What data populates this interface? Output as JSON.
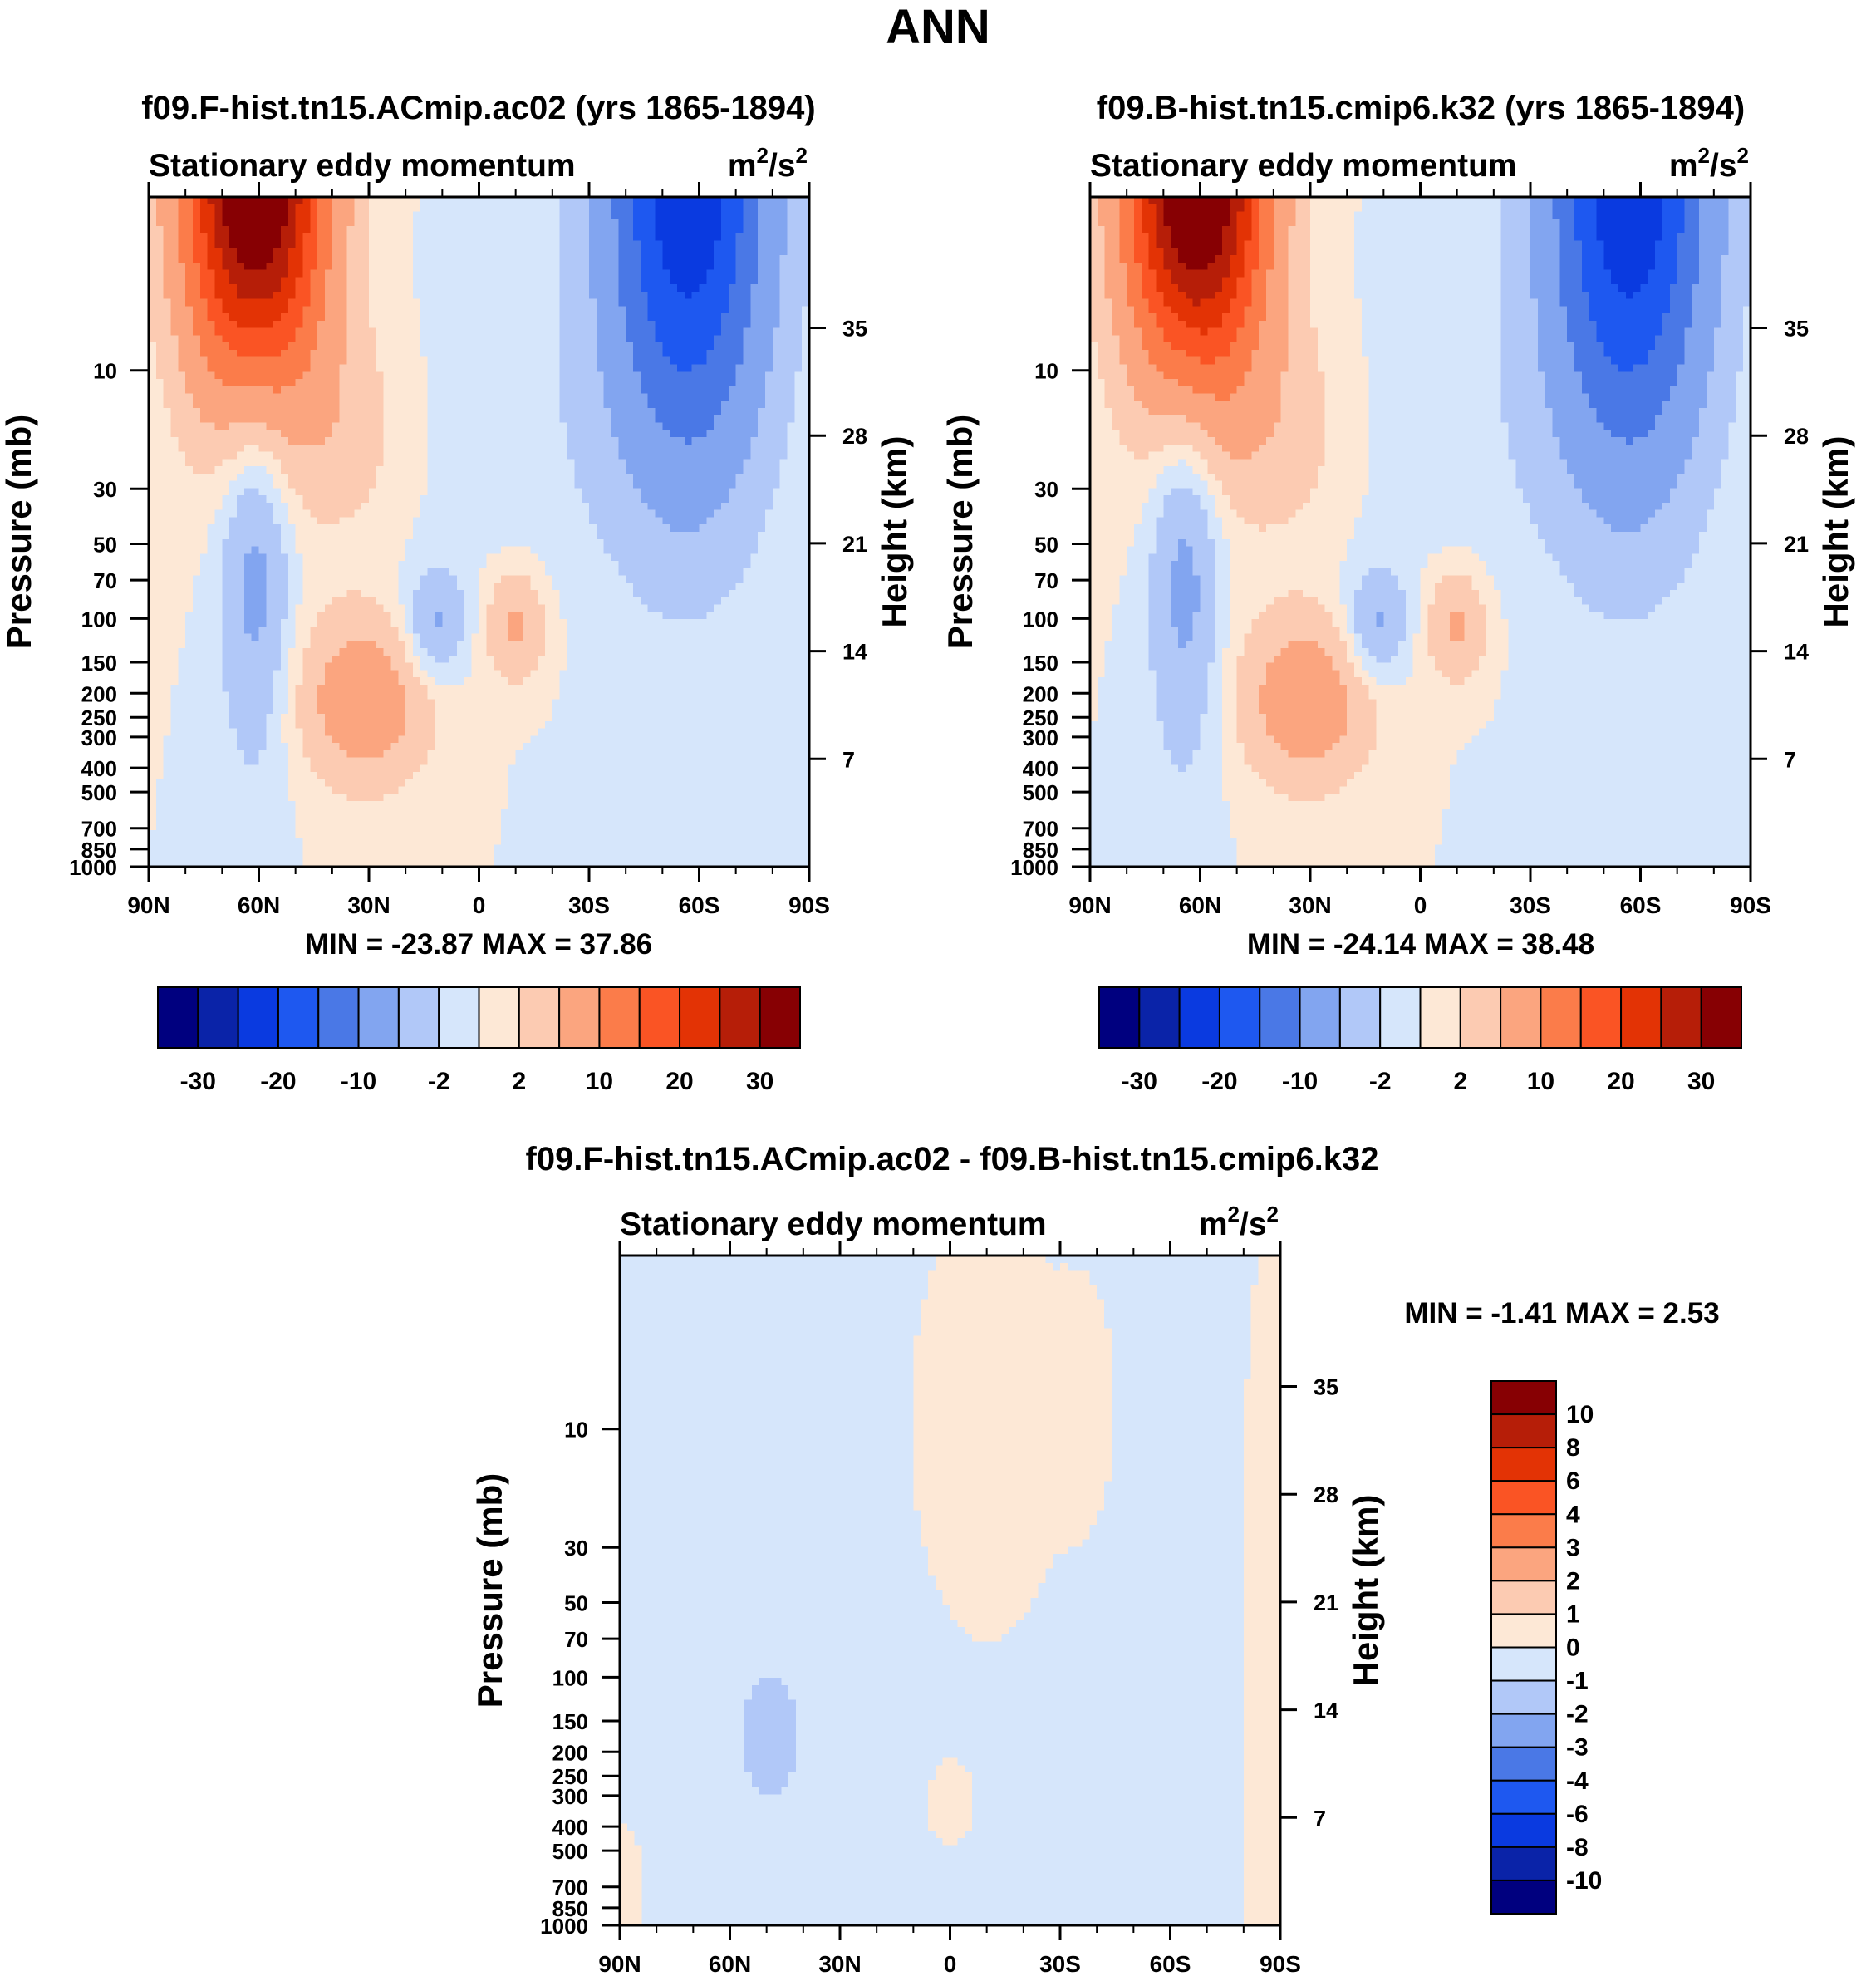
{
  "page_title": "ANN",
  "chart_data": [
    {
      "type": "contour",
      "title": "f09.F-hist.tn15.ACmip.ac02 (yrs 1865-1894)",
      "subtitle": "Stationary eddy momentum",
      "units_base": "m",
      "units_sup1": "2",
      "units_mid": "/s",
      "units_sup2": "2",
      "ylabel": "Pressure (mb)",
      "ylabel_right": "Height (km)",
      "x_ticks": [
        "90N",
        "60N",
        "30N",
        "0",
        "30S",
        "60S",
        "90S"
      ],
      "x_range": [
        90,
        -90
      ],
      "y_ticks": [
        10,
        30,
        50,
        70,
        100,
        150,
        200,
        250,
        300,
        400,
        500,
        700,
        850,
        1000
      ],
      "y_range_mb": [
        2,
        1000
      ],
      "height_ticks_km": [
        35,
        28,
        21,
        14,
        7
      ],
      "min_max": "MIN = -23.87  MAX =  37.86",
      "levels": [
        -30,
        -25,
        -20,
        -15,
        -10,
        -5,
        -2,
        0,
        2,
        5,
        10,
        15,
        20,
        25,
        30
      ],
      "colorbar_labels": [
        "-30",
        "-20",
        "-10",
        "-2",
        "2",
        "10",
        "20",
        "30"
      ],
      "features": [
        {
          "lat": 60,
          "p": 3,
          "value": 37.86,
          "kind": "max"
        },
        {
          "lat": -57,
          "p": 3,
          "value": -23.87,
          "kind": "min"
        },
        {
          "lat": 62,
          "p": 90,
          "value": -6,
          "kind": "min"
        },
        {
          "lat": 30,
          "p": 260,
          "value": 8,
          "kind": "max"
        },
        {
          "lat": -10,
          "p": 150,
          "value": 6,
          "kind": "max"
        },
        {
          "lat": 12,
          "p": 150,
          "value": -5,
          "kind": "min"
        }
      ]
    },
    {
      "type": "contour",
      "title": "f09.B-hist.tn15.cmip6.k32 (yrs 1865-1894)",
      "subtitle": "Stationary eddy momentum",
      "units_base": "m",
      "units_sup1": "2",
      "units_mid": "/s",
      "units_sup2": "2",
      "ylabel": "Pressure (mb)",
      "ylabel_right": "Height (km)",
      "x_ticks": [
        "90N",
        "60N",
        "30N",
        "0",
        "30S",
        "60S",
        "90S"
      ],
      "x_range": [
        90,
        -90
      ],
      "y_ticks": [
        10,
        30,
        50,
        70,
        100,
        150,
        200,
        250,
        300,
        400,
        500,
        700,
        850,
        1000
      ],
      "y_range_mb": [
        2,
        1000
      ],
      "height_ticks_km": [
        35,
        28,
        21,
        14,
        7
      ],
      "min_max": "MIN = -24.14  MAX =  38.48",
      "levels": [
        -30,
        -25,
        -20,
        -15,
        -10,
        -5,
        -2,
        0,
        2,
        5,
        10,
        15,
        20,
        25,
        30
      ],
      "colorbar_labels": [
        "-30",
        "-20",
        "-10",
        "-2",
        "2",
        "10",
        "20",
        "30"
      ],
      "features": [
        {
          "lat": 60,
          "p": 3,
          "value": 38.48,
          "kind": "max"
        },
        {
          "lat": -57,
          "p": 3,
          "value": -24.14,
          "kind": "min"
        },
        {
          "lat": 64,
          "p": 80,
          "value": -6,
          "kind": "min"
        },
        {
          "lat": 30,
          "p": 250,
          "value": 9,
          "kind": "max"
        },
        {
          "lat": -10,
          "p": 150,
          "value": 6,
          "kind": "max"
        },
        {
          "lat": 12,
          "p": 150,
          "value": -6,
          "kind": "min"
        }
      ]
    },
    {
      "type": "contour",
      "title": "f09.F-hist.tn15.ACmip.ac02 - f09.B-hist.tn15.cmip6.k32",
      "subtitle": "Stationary eddy momentum",
      "units_base": "m",
      "units_sup1": "2",
      "units_mid": "/s",
      "units_sup2": "2",
      "ylabel": "Pressure (mb)",
      "ylabel_right": "Height (km)",
      "x_ticks": [
        "90N",
        "60N",
        "30N",
        "0",
        "30S",
        "60S",
        "90S"
      ],
      "x_range": [
        90,
        -90
      ],
      "y_ticks": [
        10,
        30,
        50,
        70,
        100,
        150,
        200,
        250,
        300,
        400,
        500,
        700,
        850,
        1000
      ],
      "y_range_mb": [
        2,
        1000
      ],
      "height_ticks_km": [
        35,
        28,
        21,
        14,
        7
      ],
      "min_max": "MIN =  -1.41  MAX =   2.53",
      "levels": [
        -10,
        -8,
        -6,
        -4,
        -3,
        -2,
        -1,
        0,
        1,
        2,
        3,
        4,
        6,
        8,
        10
      ],
      "colorbar_labels": [
        "10",
        "8",
        "6",
        "4",
        "3",
        "2",
        "1",
        "0",
        "-1",
        "-2",
        "-3",
        "-4",
        "-6",
        "-8",
        "-10"
      ],
      "features": [
        {
          "lat": 50,
          "p": 260,
          "value": -1.41,
          "kind": "min"
        },
        {
          "lat": -10,
          "p": 20,
          "value": 0.5,
          "kind": "positive region"
        },
        {
          "lat": -85,
          "p": 500,
          "value": 0.5,
          "kind": "positive region"
        }
      ]
    }
  ],
  "colors": {
    "n7": "#00007f",
    "n6": "#0a23a8",
    "n5": "#0a3ae0",
    "n4": "#1e58f0",
    "n3": "#4a78e6",
    "n2": "#82a5f0",
    "n1": "#b1c8f8",
    "n0": "#d6e6fb",
    "p0": "#fde8d6",
    "p1": "#fccbb2",
    "p2": "#fba57f",
    "p3": "#fb7c4a",
    "p4": "#fa5424",
    "p5": "#e33305",
    "p6": "#b61e08",
    "p7": "#870003"
  }
}
